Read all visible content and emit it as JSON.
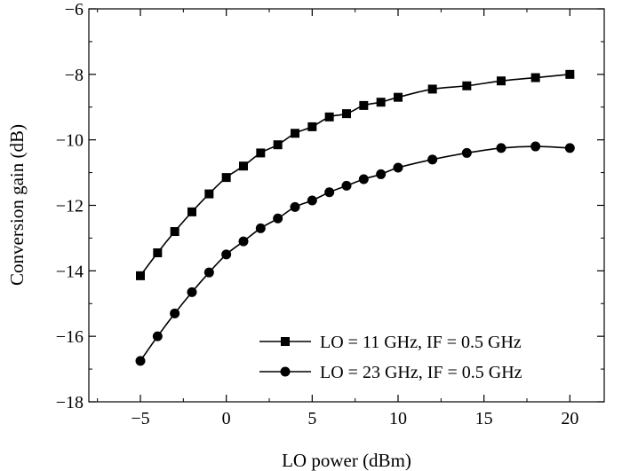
{
  "chart_data": {
    "type": "line",
    "xlabel": "LO power (dBm)",
    "ylabel": "Conversion gain (dB)",
    "xlim": [
      -8,
      22
    ],
    "ylim": [
      -18,
      -6
    ],
    "xticks": [
      -5,
      0,
      5,
      10,
      15,
      20
    ],
    "yticks": [
      -18,
      -16,
      -14,
      -12,
      -10,
      -8,
      -6
    ],
    "xtick_labels": [
      "−5",
      "0",
      "5",
      "10",
      "15",
      "20"
    ],
    "ytick_labels": [
      "−18",
      "−16",
      "−14",
      "−12",
      "−10",
      "−8",
      "−6"
    ],
    "grid": false,
    "legend_position": "bottom-right",
    "series": [
      {
        "name": "LO = 11 GHz, IF = 0.5 GHz",
        "marker": "square",
        "color": "#000000",
        "x": [
          -5,
          -4,
          -3,
          -2,
          -1,
          0,
          1,
          2,
          3,
          4,
          5,
          6,
          7,
          8,
          9,
          10,
          12,
          14,
          16,
          18,
          20
        ],
        "values": [
          -14.15,
          -13.45,
          -12.8,
          -12.2,
          -11.65,
          -11.15,
          -10.8,
          -10.4,
          -10.15,
          -9.8,
          -9.6,
          -9.3,
          -9.2,
          -8.95,
          -8.85,
          -8.7,
          -8.45,
          -8.35,
          -8.2,
          -8.1,
          -8.0
        ]
      },
      {
        "name": "LO = 23 GHz, IF = 0.5 GHz",
        "marker": "circle",
        "color": "#000000",
        "x": [
          -5,
          -4,
          -3,
          -2,
          -1,
          0,
          1,
          2,
          3,
          4,
          5,
          6,
          7,
          8,
          9,
          10,
          12,
          14,
          16,
          18,
          20
        ],
        "values": [
          -16.75,
          -16.0,
          -15.3,
          -14.65,
          -14.05,
          -13.5,
          -13.1,
          -12.7,
          -12.4,
          -12.05,
          -11.85,
          -11.6,
          -11.4,
          -11.2,
          -11.05,
          -10.85,
          -10.6,
          -10.4,
          -10.25,
          -10.2,
          -10.25
        ]
      }
    ]
  }
}
